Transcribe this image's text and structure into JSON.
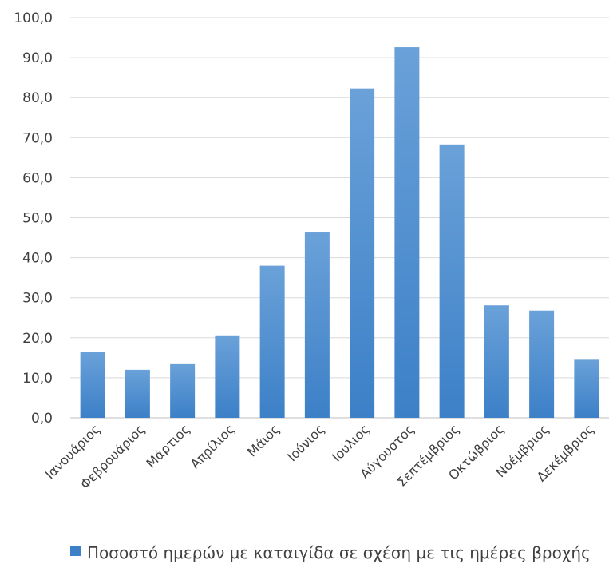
{
  "chart_data": {
    "type": "bar",
    "categories": [
      "Ιανουάριος",
      "Φεβρουάριος",
      "Μάρτιος",
      "Απρίλιος",
      "Μάιος",
      "Ιούνιος",
      "Ιούλιος",
      "Αύγουστος",
      "Σεπτέμβριος",
      "Οκτώβριος",
      "Νοέμβριος",
      "Δεκέμβριος"
    ],
    "series": [
      {
        "name": "Ποσοστό ημερών με καταιγίδα σε σχέση με τις ημέρες βροχής",
        "values": [
          16.4,
          12.0,
          13.6,
          20.6,
          38.0,
          46.3,
          82.3,
          92.6,
          68.3,
          28.1,
          26.8,
          14.7
        ]
      }
    ],
    "yticks": [
      "0,0",
      "10,0",
      "20,0",
      "30,0",
      "40,0",
      "50,0",
      "60,0",
      "70,0",
      "80,0",
      "90,0",
      "100,0"
    ],
    "ylim": [
      0,
      100
    ],
    "grid": true,
    "legend_position": "bottom",
    "colors": {
      "bar_top": "#6aa1d9",
      "bar_bottom": "#3c80c7",
      "grid": "#d9d9d9",
      "axis": "#bfbfbf",
      "text": "#404040"
    }
  }
}
